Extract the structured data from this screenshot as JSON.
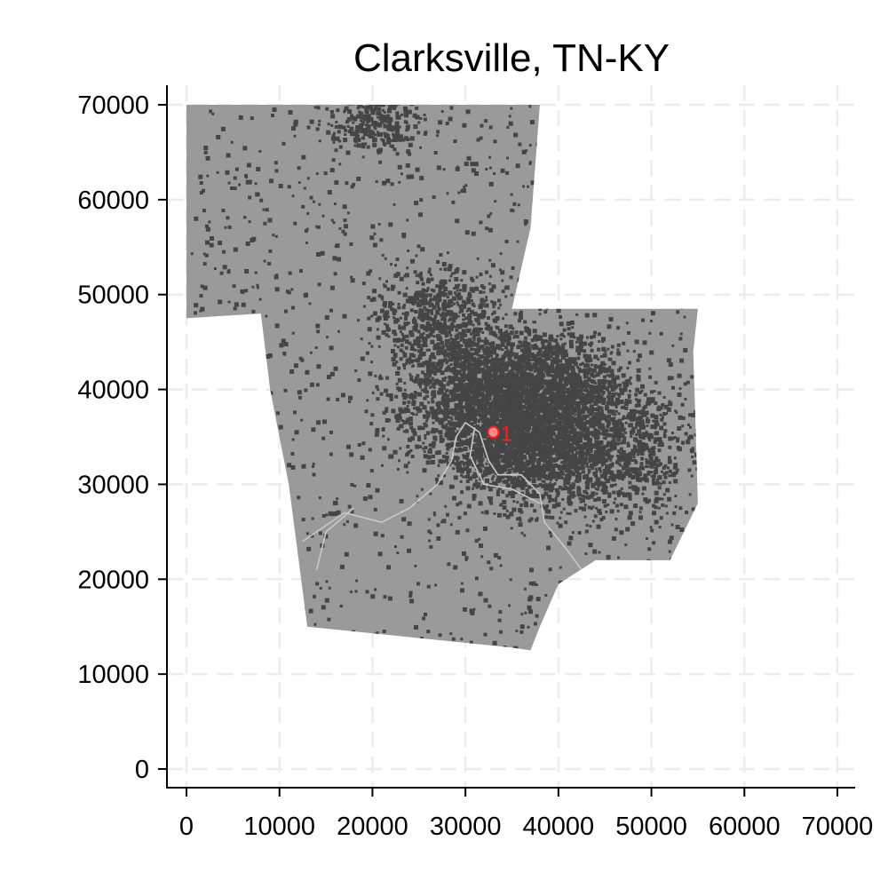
{
  "title": "Clarksville, TN-KY",
  "colors": {
    "region_fill": "#9a9a9a",
    "urban_speckle": "#454545",
    "roads": "#c9c9c9",
    "gridlines": "#ececec",
    "marker": "#ff2020",
    "axis": "#000000"
  },
  "chart_data": {
    "type": "scatter",
    "title": "Clarksville, TN-KY",
    "xlabel": "",
    "ylabel": "",
    "xlim": [
      0,
      70000
    ],
    "ylim": [
      0,
      70000
    ],
    "xticks": [
      0,
      10000,
      20000,
      30000,
      40000,
      50000,
      60000,
      70000
    ],
    "yticks": [
      0,
      10000,
      20000,
      30000,
      40000,
      50000,
      60000,
      70000
    ],
    "x_tick_labels": [
      "0",
      "10000",
      "20000",
      "30000",
      "40000",
      "50000",
      "60000",
      "70000"
    ],
    "y_tick_labels": [
      "0",
      "10000",
      "20000",
      "30000",
      "40000",
      "50000",
      "60000",
      "70000"
    ],
    "grid": true,
    "region_outline": [
      [
        0,
        70000
      ],
      [
        38000,
        70000
      ],
      [
        37000,
        57000
      ],
      [
        35000,
        48500
      ],
      [
        55000,
        48500
      ],
      [
        54500,
        44000
      ],
      [
        55000,
        28000
      ],
      [
        52000,
        22000
      ],
      [
        44000,
        22000
      ],
      [
        40000,
        19500
      ],
      [
        38000,
        15000
      ],
      [
        37000,
        12500
      ],
      [
        35000,
        12800
      ],
      [
        13000,
        15000
      ],
      [
        11000,
        30000
      ],
      [
        9000,
        40000
      ],
      [
        8000,
        48000
      ],
      [
        0,
        47500
      ]
    ],
    "urban_clusters": [
      {
        "x": 31500,
        "y": 40000,
        "spread": 4500,
        "weight": 3
      },
      {
        "x": 39000,
        "y": 40500,
        "spread": 4000,
        "weight": 2.5
      },
      {
        "x": 44000,
        "y": 34000,
        "spread": 5000,
        "weight": 2.5
      },
      {
        "x": 35000,
        "y": 34000,
        "spread": 3500,
        "weight": 2
      },
      {
        "x": 27000,
        "y": 48000,
        "spread": 3500,
        "weight": 1
      },
      {
        "x": 20000,
        "y": 69000,
        "spread": 2500,
        "weight": 0.6
      }
    ],
    "roads": [
      [
        [
          12500,
          24000
        ],
        [
          17000,
          27000
        ],
        [
          21000,
          26000
        ],
        [
          24000,
          27500
        ],
        [
          27000,
          30000
        ],
        [
          28500,
          32500
        ],
        [
          29000,
          35000
        ],
        [
          30000,
          36500
        ],
        [
          31500,
          35500
        ],
        [
          32500,
          32500
        ],
        [
          33500,
          31000
        ],
        [
          36000,
          31000
        ],
        [
          38000,
          29000
        ],
        [
          38500,
          26000
        ],
        [
          41000,
          23000
        ],
        [
          42500,
          21000
        ]
      ],
      [
        [
          14000,
          21000
        ],
        [
          15000,
          25000
        ],
        [
          18000,
          27500
        ]
      ],
      [
        [
          31000,
          36000
        ],
        [
          30500,
          33000
        ],
        [
          32000,
          30000
        ],
        [
          35000,
          29500
        ],
        [
          38000,
          28000
        ]
      ]
    ],
    "markers": [
      {
        "label": "1",
        "x": 33000,
        "y": 35500
      }
    ]
  }
}
